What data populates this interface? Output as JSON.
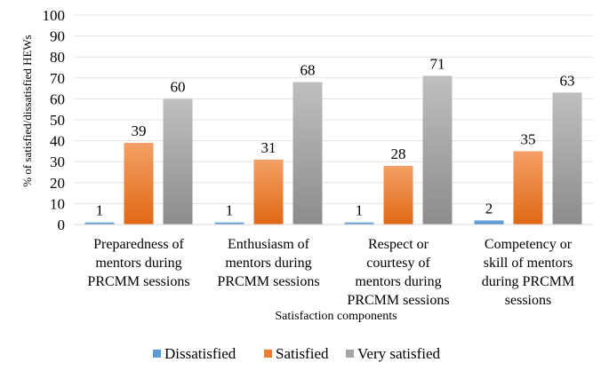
{
  "chart_data": {
    "type": "bar",
    "title": "",
    "xlabel": "Satisfaction components",
    "ylabel": "% of  satisfied/dissatisfied HEWs",
    "ylim": [
      0,
      100
    ],
    "yticks": [
      0,
      10,
      20,
      30,
      40,
      50,
      60,
      70,
      80,
      90,
      100
    ],
    "grid": true,
    "legend_position": "bottom",
    "categories": [
      [
        "Preparedness of",
        "mentors during",
        "PRCMM sessions"
      ],
      [
        "Enthusiasm of",
        "mentors during",
        "PRCMM sessions"
      ],
      [
        "Respect or",
        "courtesy of",
        "mentors during",
        "PRCMM sessions"
      ],
      [
        "Competency or",
        "skill of mentors",
        "during PRCMM",
        "sessions"
      ]
    ],
    "series": [
      {
        "name": "Dissatisfied",
        "color": "#5b9bd5",
        "values": [
          1,
          1,
          1,
          2
        ]
      },
      {
        "name": "Satisfied",
        "color": "#ed7d31",
        "values": [
          39,
          31,
          28,
          35
        ]
      },
      {
        "name": "Very satisfied",
        "color": "#a5a5a5",
        "values": [
          60,
          68,
          71,
          63
        ]
      }
    ]
  }
}
